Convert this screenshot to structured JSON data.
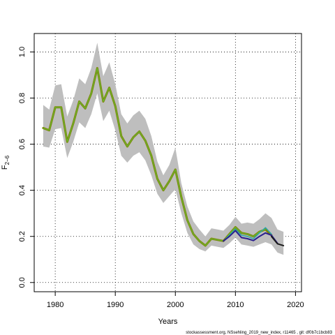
{
  "chart_data": {
    "type": "line",
    "title": "",
    "xlabel": "Years",
    "ylabel": "F",
    "ylabel_subscript": "2−6",
    "xlim": [
      1976.5,
      2021
    ],
    "ylim": [
      -0.04,
      1.08
    ],
    "x_ticks": [
      1980,
      1990,
      2000,
      2010,
      2020
    ],
    "x_tick_labels": [
      "1980",
      "1990",
      "2000",
      "2010",
      "2020"
    ],
    "y_ticks": [
      0.0,
      0.2,
      0.4,
      0.6,
      0.8,
      1.0
    ],
    "y_tick_labels": [
      "0.0",
      "0.2",
      "0.4",
      "0.6",
      "0.8",
      "1.0"
    ],
    "grid": true,
    "footnote": "stockassessment.org, NSsehling_2019_new_index, r11465 , git: df0b7c1bcb83",
    "band_color": "#bebebe",
    "confidence_band": {
      "x": [
        1978,
        1979,
        1980,
        1981,
        1982,
        1983,
        1984,
        1985,
        1986,
        1987,
        1988,
        1989,
        1990,
        1991,
        1992,
        1993,
        1994,
        1995,
        1996,
        1997,
        1998,
        1999,
        2000,
        2001,
        2002,
        2003,
        2004,
        2005,
        2006,
        2007,
        2008,
        2009,
        2010,
        2011,
        2012,
        2013,
        2014,
        2015,
        2016,
        2017,
        2018
      ],
      "lower": [
        0.59,
        0.585,
        0.665,
        0.67,
        0.54,
        0.61,
        0.695,
        0.67,
        0.73,
        0.82,
        0.7,
        0.745,
        0.66,
        0.55,
        0.52,
        0.55,
        0.565,
        0.53,
        0.465,
        0.385,
        0.345,
        0.375,
        0.405,
        0.3,
        0.215,
        0.165,
        0.145,
        0.135,
        0.16,
        0.155,
        0.15,
        0.17,
        0.195,
        0.165,
        0.16,
        0.155,
        0.165,
        0.175,
        0.165,
        0.13,
        0.12
      ],
      "upper": [
        0.77,
        0.75,
        0.855,
        0.86,
        0.72,
        0.79,
        0.885,
        0.86,
        0.93,
        1.04,
        0.895,
        0.955,
        0.86,
        0.73,
        0.69,
        0.725,
        0.745,
        0.71,
        0.635,
        0.525,
        0.465,
        0.51,
        0.585,
        0.43,
        0.33,
        0.265,
        0.23,
        0.2,
        0.235,
        0.23,
        0.225,
        0.25,
        0.285,
        0.255,
        0.26,
        0.255,
        0.275,
        0.3,
        0.28,
        0.23,
        0.22
      ]
    },
    "series": [
      {
        "color": "#808000",
        "width": 3,
        "x": [
          1978,
          1979,
          1980,
          1981,
          1982,
          1983,
          1984,
          1985,
          1986,
          1987,
          1988,
          1989,
          1990,
          1991,
          1992,
          1993,
          1994,
          1995,
          1996,
          1997,
          1998,
          1999,
          2000,
          2001,
          2002,
          2003,
          2004,
          2005,
          2006,
          2007,
          2008,
          2009,
          2010,
          2011,
          2012,
          2013,
          2014,
          2015,
          2016
        ],
        "values": [
          0.67,
          0.66,
          0.76,
          0.76,
          0.61,
          0.69,
          0.785,
          0.755,
          0.82,
          0.93,
          0.785,
          0.845,
          0.765,
          0.635,
          0.59,
          0.63,
          0.655,
          0.615,
          0.55,
          0.45,
          0.4,
          0.44,
          0.49,
          0.37,
          0.27,
          0.21,
          0.18,
          0.16,
          0.19,
          0.185,
          0.18,
          0.21,
          0.24,
          0.215,
          0.21,
          0.2,
          0.22,
          0.23,
          0.205
        ]
      },
      {
        "color": "#66bb33",
        "width": 1.2,
        "x": [
          1978,
          1979,
          1980,
          1981,
          1982,
          1983,
          1984,
          1985,
          1986,
          1987,
          1988,
          1989,
          1990,
          1991,
          1992,
          1993,
          1994,
          1995,
          1996,
          1997,
          1998,
          1999,
          2000,
          2001,
          2002,
          2003,
          2004,
          2005,
          2006,
          2007,
          2008,
          2009,
          2010,
          2011,
          2012,
          2013,
          2014,
          2015
        ],
        "values": [
          0.67,
          0.66,
          0.76,
          0.76,
          0.61,
          0.69,
          0.785,
          0.755,
          0.82,
          0.93,
          0.785,
          0.845,
          0.765,
          0.635,
          0.59,
          0.63,
          0.655,
          0.615,
          0.55,
          0.45,
          0.4,
          0.44,
          0.49,
          0.37,
          0.27,
          0.21,
          0.18,
          0.16,
          0.19,
          0.185,
          0.18,
          0.21,
          0.24,
          0.215,
          0.21,
          0.2,
          0.22,
          0.23
        ]
      },
      {
        "color": "#2aa6a6",
        "width": 1.5,
        "x": [
          2008,
          2009,
          2010,
          2011,
          2012,
          2013,
          2014,
          2015,
          2016
        ],
        "values": [
          0.18,
          0.205,
          0.232,
          0.205,
          0.2,
          0.19,
          0.215,
          0.238,
          0.21
        ]
      },
      {
        "color": "#2b1f8f",
        "width": 2,
        "x": [
          2008,
          2009,
          2010,
          2011,
          2012,
          2013,
          2014,
          2015,
          2016,
          2017
        ],
        "values": [
          0.18,
          0.2,
          0.225,
          0.195,
          0.19,
          0.182,
          0.2,
          0.215,
          0.205,
          0.17
        ]
      },
      {
        "color": "#1a1a1a",
        "width": 2,
        "x": [
          2016,
          2017,
          2018
        ],
        "values": [
          0.2,
          0.168,
          0.16
        ]
      }
    ]
  }
}
